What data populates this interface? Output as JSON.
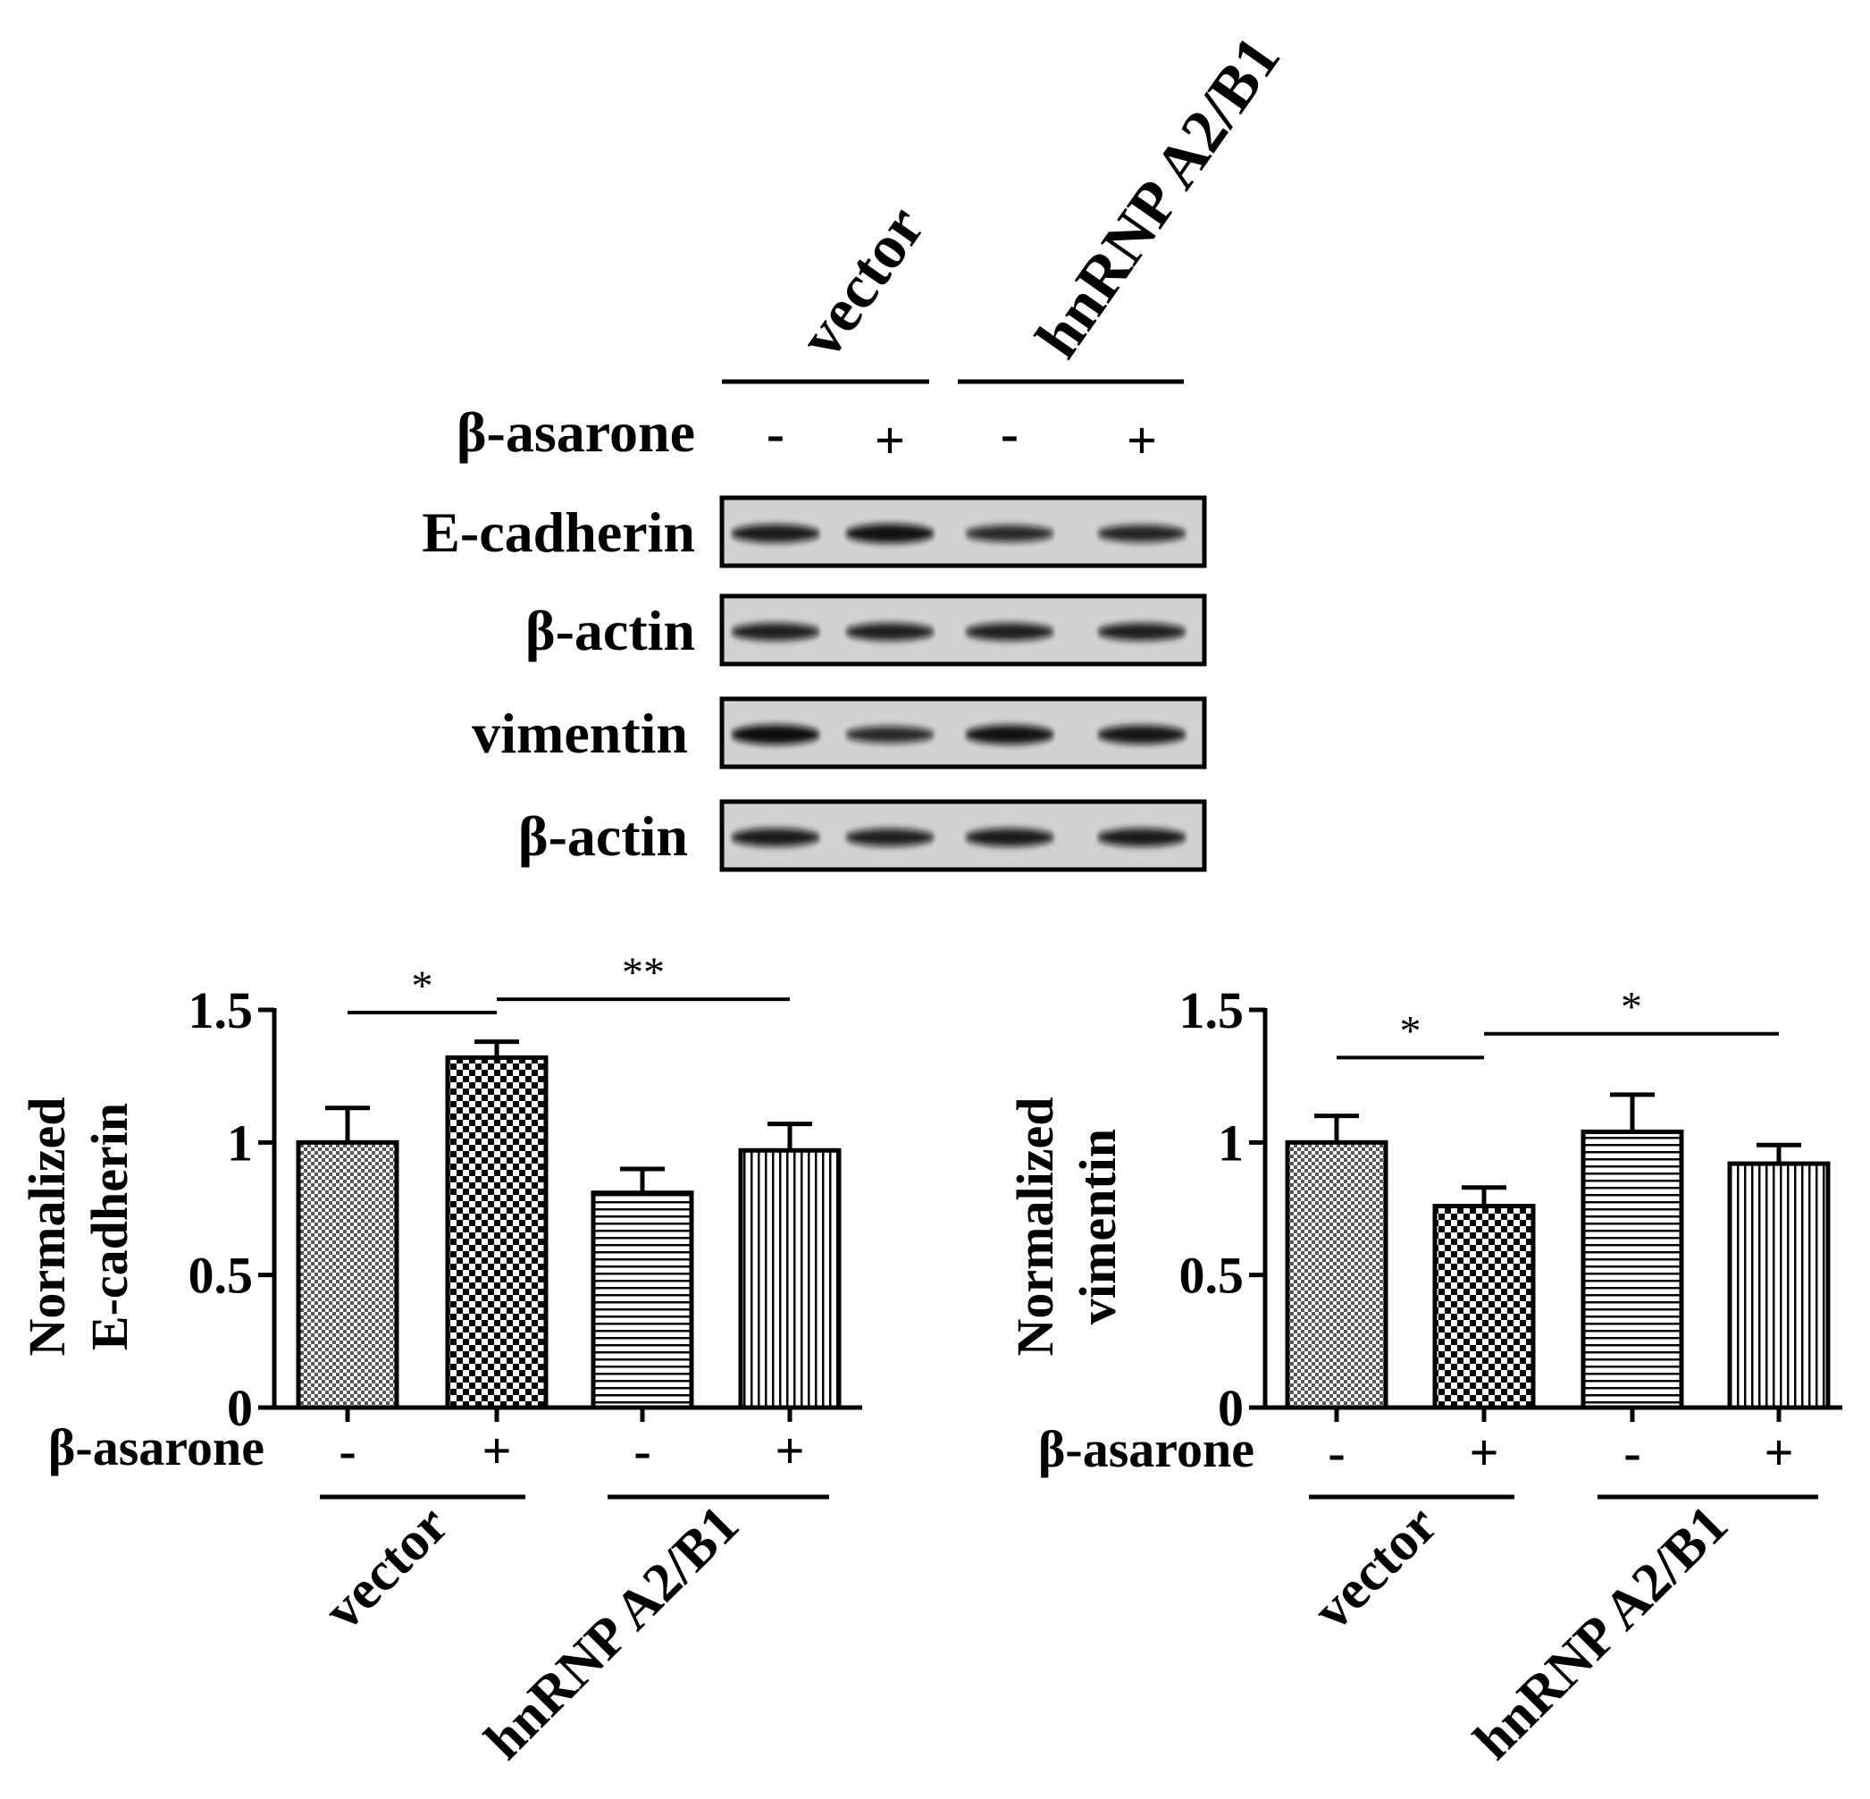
{
  "blot": {
    "groups": [
      "vector",
      "hnRNP A2/B1"
    ],
    "treatment_label": "β-asarone",
    "lane_signs": [
      "-",
      "+",
      "-",
      "+"
    ],
    "rows": [
      {
        "label": "E-cadherin",
        "intensity": [
          0.85,
          0.95,
          0.7,
          0.75
        ]
      },
      {
        "label": "β-actin",
        "intensity": [
          0.8,
          0.8,
          0.8,
          0.8
        ]
      },
      {
        "label": "vimentin",
        "intensity": [
          1.0,
          0.7,
          0.95,
          0.9
        ]
      },
      {
        "label": "β-actin",
        "intensity": [
          0.85,
          0.8,
          0.85,
          0.85
        ]
      }
    ]
  },
  "chart_data": [
    {
      "type": "bar",
      "ylabel_lines": [
        "Normalized",
        "E-cadherin"
      ],
      "ylim": [
        0,
        1.5
      ],
      "yticks": [
        "0",
        "0.5",
        "1",
        "1.5"
      ],
      "treatment_label": "β-asarone",
      "signs": [
        "-",
        "+",
        "-",
        "+"
      ],
      "groups": [
        "vector",
        "hnRNP A2/B1"
      ],
      "values": [
        1.0,
        1.32,
        0.81,
        0.97
      ],
      "errors": [
        0.13,
        0.06,
        0.09,
        0.1
      ],
      "patterns": [
        "fine-check",
        "coarse-check",
        "horizontal",
        "vertical"
      ],
      "significance": [
        {
          "from": 0,
          "to": 1,
          "label": "*",
          "y": 1.49
        },
        {
          "from": 1,
          "to": 3,
          "label": "**",
          "y": 1.54
        }
      ]
    },
    {
      "type": "bar",
      "ylabel_lines": [
        "Normalized",
        "vimentin"
      ],
      "ylim": [
        0,
        1.5
      ],
      "yticks": [
        "0",
        "0.5",
        "1",
        "1.5"
      ],
      "treatment_label": "β-asarone",
      "signs": [
        "-",
        "+",
        "-",
        "+"
      ],
      "groups": [
        "vector",
        "hnRNP A2/B1"
      ],
      "values": [
        1.0,
        0.76,
        1.04,
        0.92
      ],
      "errors": [
        0.1,
        0.07,
        0.14,
        0.07
      ],
      "patterns": [
        "fine-check",
        "coarse-check",
        "horizontal",
        "vertical"
      ],
      "significance": [
        {
          "from": 0,
          "to": 1,
          "label": "*",
          "y": 1.32
        },
        {
          "from": 1,
          "to": 3,
          "label": "*",
          "y": 1.41
        }
      ]
    }
  ]
}
